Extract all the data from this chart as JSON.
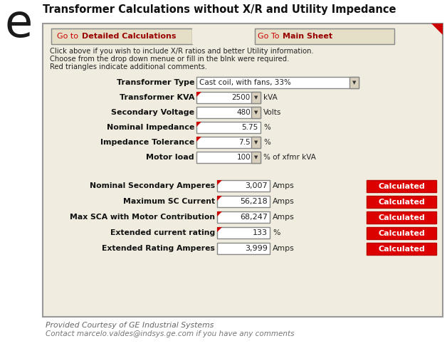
{
  "title": "Transformer Calculations without X/R and Utility Impedance",
  "letter": "e",
  "panel_bg": "#f0ede0",
  "instructions": [
    "Click above if you wish to include X/R ratios and better Utility information.",
    "Choose from the drop down menue or fill in the blnk were required.",
    "Red triangles indicate additional comments."
  ],
  "input_fields": [
    {
      "label": "Transformer Type",
      "value": "Cast coil, with fans, 33%",
      "has_dropdown": true,
      "wide": true,
      "has_triangle": false,
      "unit": ""
    },
    {
      "label": "Transformer KVA",
      "value": "2500",
      "has_dropdown": true,
      "wide": false,
      "has_triangle": true,
      "unit": "kVA"
    },
    {
      "label": "Secondary Voltage",
      "value": "480",
      "has_dropdown": true,
      "wide": false,
      "has_triangle": false,
      "unit": "Volts"
    },
    {
      "label": "Nominal Impedance",
      "value": "5.75",
      "has_dropdown": false,
      "wide": false,
      "has_triangle": true,
      "unit": "%"
    },
    {
      "label": "Impedance Tolerance",
      "value": "7.5",
      "has_dropdown": true,
      "wide": false,
      "has_triangle": true,
      "unit": "%"
    },
    {
      "label": "Motor load",
      "value": "100",
      "has_dropdown": true,
      "wide": false,
      "has_triangle": false,
      "unit": "% of xfmr kVA"
    }
  ],
  "output_fields": [
    {
      "label": "Nominal Secondary Amperes",
      "value": "3,007",
      "unit": "Amps",
      "has_triangle": true
    },
    {
      "label": "Maximum SC Current",
      "value": "56,218",
      "unit": "Amps",
      "has_triangle": true
    },
    {
      "label": "Max SCA with Motor Contribution",
      "value": "68,247",
      "unit": "Amps",
      "has_triangle": true
    },
    {
      "label": "Extended current rating",
      "value": "133",
      "unit": "%",
      "has_triangle": true
    },
    {
      "label": "Extended Rating Amperes",
      "value": "3,999",
      "unit": "Amps",
      "has_triangle": false
    }
  ],
  "footer1": "Provided Courtesy of GE Industrial Systems",
  "footer2": "Contact marcelo.valdes@indsys.ge.com if you have any comments",
  "calc_btn_text": "Calculated",
  "btn1_prefix": "Go to ",
  "btn1_main": "Detailed Calculations",
  "btn2_prefix": "Go To ",
  "btn2_main": "Main Sheet"
}
